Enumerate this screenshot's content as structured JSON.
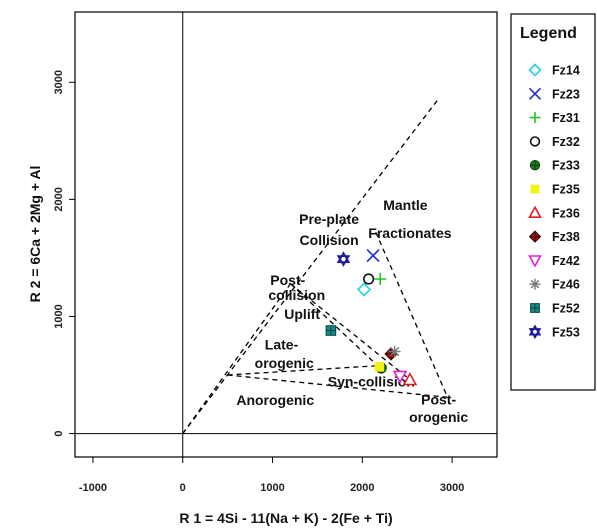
{
  "chart_data": {
    "type": "scatter",
    "title": "",
    "xlabel": "R 1 = 4Si - 11(Na + K) - 2(Fe + Ti)",
    "ylabel": "R 2 = 6Ca + 2Mg + Al",
    "xlim": [
      -1200,
      3500
    ],
    "ylim": [
      -200,
      3600
    ],
    "xticks": [
      -1000,
      0,
      1000,
      2000,
      3000
    ],
    "yticks": [
      0,
      1000,
      2000,
      3000
    ],
    "xtick_labels": [
      "-1000",
      "0",
      "1000",
      "2000",
      "3000"
    ],
    "ytick_labels": [
      "0",
      "1000",
      "2000",
      "3000"
    ],
    "grid": false,
    "legend": {
      "title": "Legend",
      "position": "right"
    },
    "reference_lines": {
      "x_zero": 0,
      "y_zero": 0
    },
    "field_boundaries": [
      {
        "points": [
          [
            0,
            0
          ],
          [
            2850,
            2860
          ]
        ]
      },
      {
        "points": [
          [
            0,
            0
          ],
          [
            1200,
            1280
          ]
        ]
      },
      {
        "points": [
          [
            2150,
            1720
          ],
          [
            2950,
            310
          ]
        ]
      },
      {
        "points": [
          [
            1200,
            1280
          ],
          [
            2170,
            580
          ]
        ]
      },
      {
        "points": [
          [
            1200,
            1280
          ],
          [
            2580,
            430
          ]
        ]
      },
      {
        "points": [
          [
            500,
            500
          ],
          [
            2170,
            580
          ]
        ]
      },
      {
        "points": [
          [
            500,
            500
          ],
          [
            2950,
            310
          ]
        ]
      }
    ],
    "regions": [
      {
        "label": "Mantle",
        "x": 2480,
        "y": 1910
      },
      {
        "label": "Fractionates",
        "x": 2530,
        "y": 1670
      },
      {
        "label": "Pre-plate",
        "x": 1630,
        "y": 1790
      },
      {
        "label": "Collision",
        "x": 1630,
        "y": 1610
      },
      {
        "label": "Post-",
        "x": 1170,
        "y": 1270
      },
      {
        "label": "collision",
        "x": 1270,
        "y": 1140
      },
      {
        "label": "Uplift",
        "x": 1330,
        "y": 980
      },
      {
        "label": "Late-",
        "x": 1100,
        "y": 720
      },
      {
        "label": "orogenic",
        "x": 1130,
        "y": 560
      },
      {
        "label": "Syn-collision",
        "x": 2100,
        "y": 400
      },
      {
        "label": "Post-",
        "x": 2850,
        "y": 250
      },
      {
        "label": "orogenic",
        "x": 2850,
        "y": 100
      },
      {
        "label": "Anorogenic",
        "x": 1030,
        "y": 245
      }
    ],
    "series": [
      {
        "name": "Fz14",
        "marker": "diamond-open",
        "color": "#22d3e6",
        "points": [
          [
            2020,
            1230
          ]
        ]
      },
      {
        "name": "Fz23",
        "marker": "x",
        "color": "#1f2bd0",
        "points": [
          [
            2120,
            1520
          ]
        ]
      },
      {
        "name": "Fz31",
        "marker": "plus",
        "color": "#22c422",
        "points": [
          [
            2200,
            1320
          ]
        ]
      },
      {
        "name": "Fz32",
        "marker": "circle-open",
        "color": "#111111",
        "points": [
          [
            2070,
            1320
          ]
        ]
      },
      {
        "name": "Fz33",
        "marker": "circle-plus",
        "color": "#1e7a1e",
        "points": [
          [
            2210,
            560
          ]
        ]
      },
      {
        "name": "Fz35",
        "marker": "square",
        "color": "#f2f21a",
        "points": [
          [
            2190,
            570
          ]
        ]
      },
      {
        "name": "Fz36",
        "marker": "triangle-open",
        "color": "#e02020",
        "points": [
          [
            2530,
            460
          ]
        ]
      },
      {
        "name": "Fz38",
        "marker": "diamond-plus",
        "color": "#9a1414",
        "points": [
          [
            2320,
            680
          ]
        ]
      },
      {
        "name": "Fz42",
        "marker": "triangle-down-open",
        "color": "#e020e0",
        "points": [
          [
            2420,
            490
          ]
        ]
      },
      {
        "name": "Fz46",
        "marker": "asterisk",
        "color": "#777777",
        "points": [
          [
            2360,
            700
          ]
        ]
      },
      {
        "name": "Fz52",
        "marker": "square-plus",
        "color": "#138a8a",
        "points": [
          [
            1650,
            880
          ]
        ]
      },
      {
        "name": "Fz53",
        "marker": "star6",
        "color": "#1a1a9a",
        "points": [
          [
            1790,
            1490
          ]
        ]
      }
    ]
  }
}
